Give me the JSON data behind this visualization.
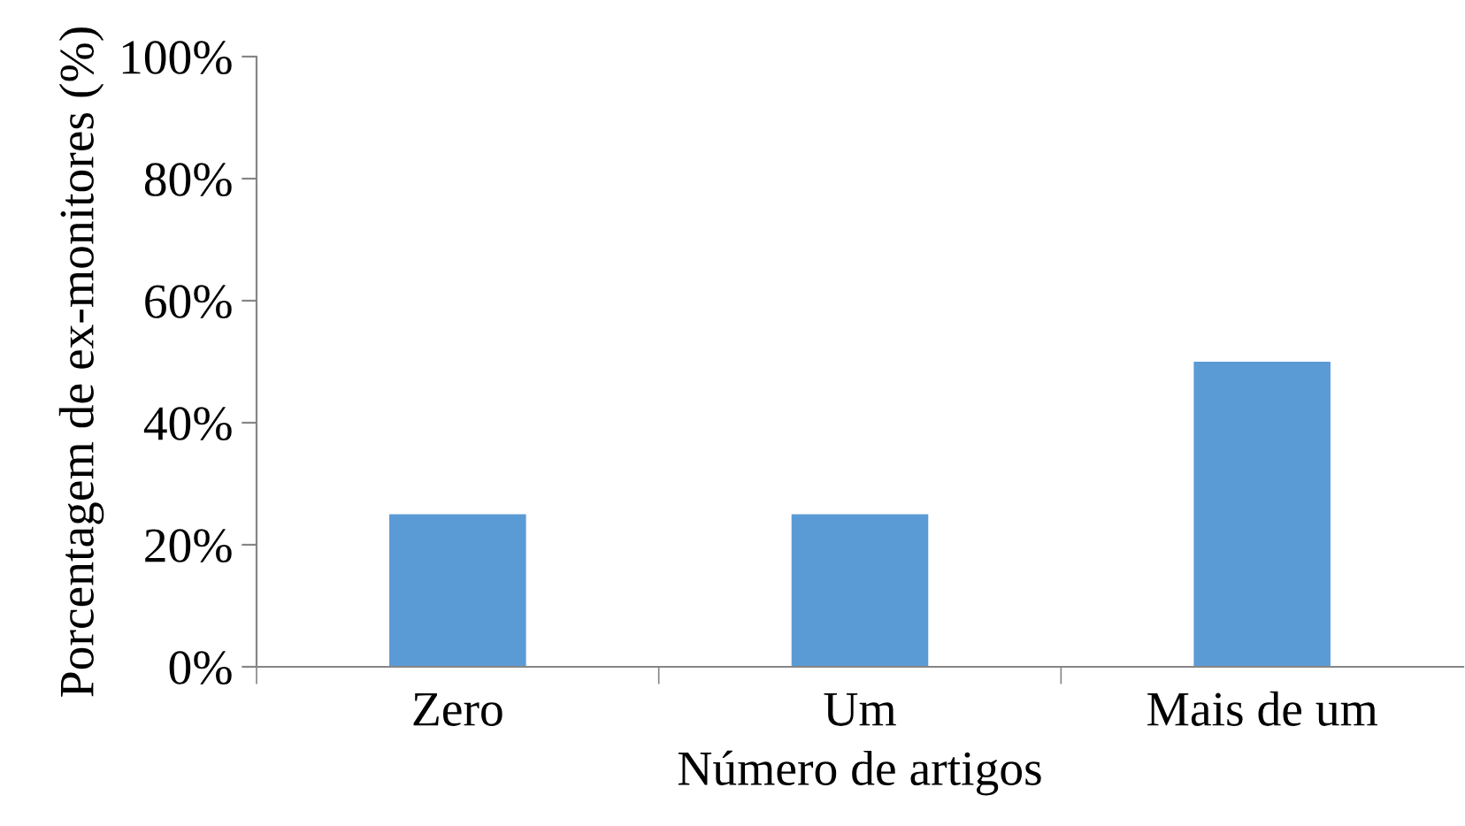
{
  "chart_data": {
    "type": "bar",
    "categories": [
      "Zero",
      "Um",
      "Mais de um"
    ],
    "values": [
      25,
      25,
      50
    ],
    "color": "#5b9bd5",
    "xlabel": "Número de artigos",
    "ylabel": "Porcentagem de ex-monitores (%)",
    "ylim": [
      0,
      100
    ],
    "yticks": [
      {
        "value": 0,
        "label": "0%"
      },
      {
        "value": 20,
        "label": "20%"
      },
      {
        "value": 40,
        "label": "40%"
      },
      {
        "value": 60,
        "label": "60%"
      },
      {
        "value": 80,
        "label": "80%"
      },
      {
        "value": 100,
        "label": "100%"
      }
    ],
    "grid": false,
    "legend": false
  }
}
